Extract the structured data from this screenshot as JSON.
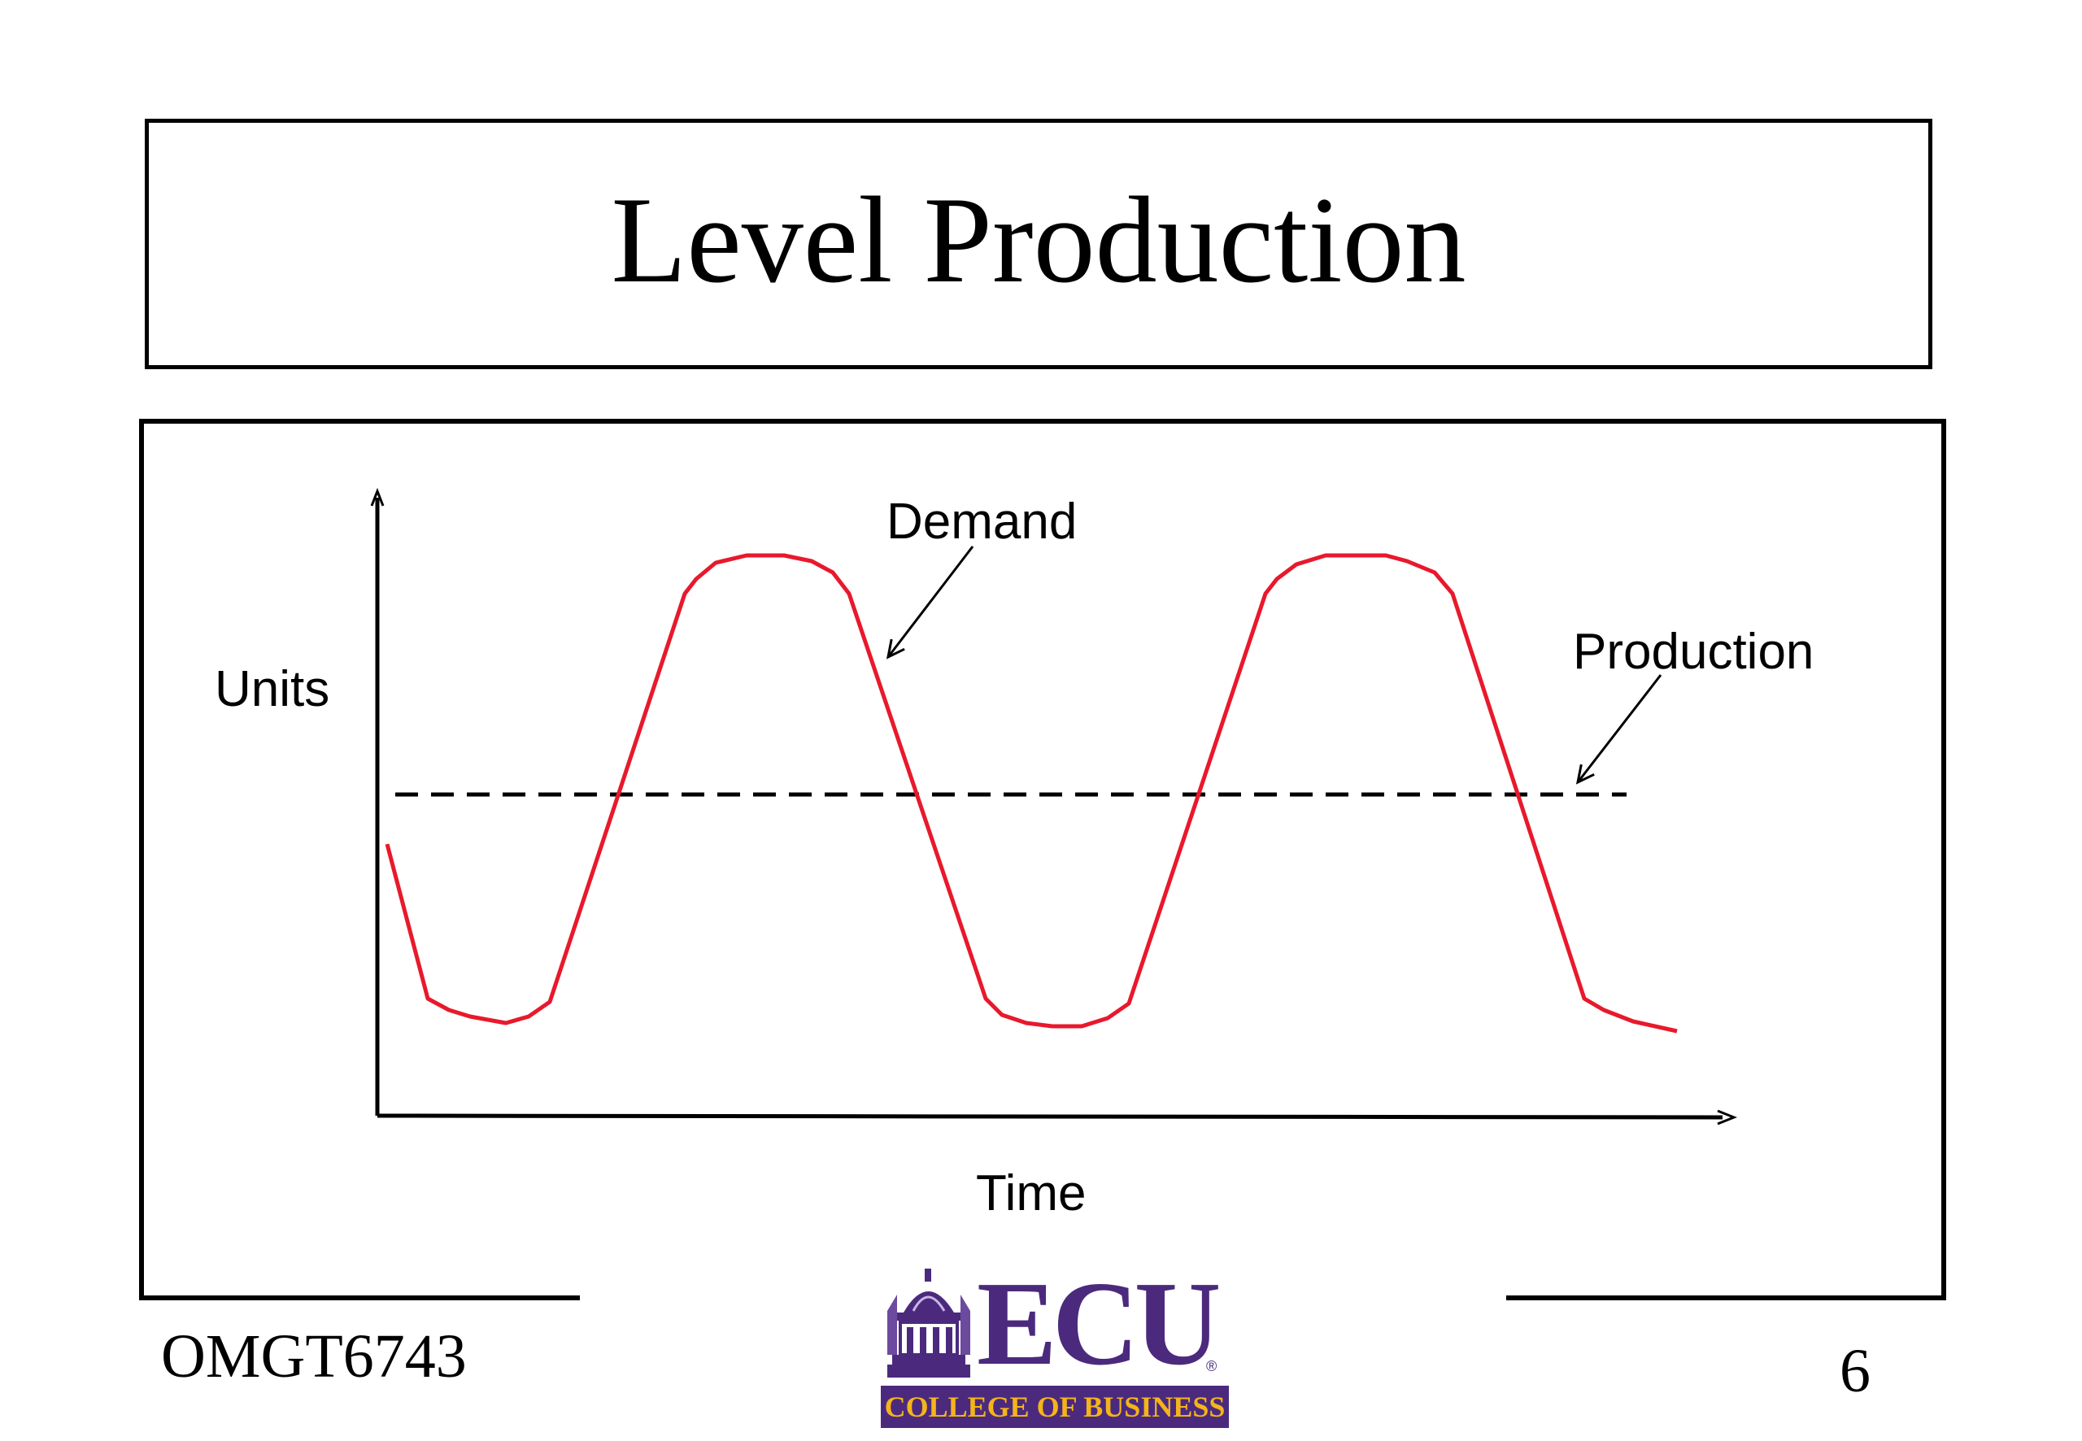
{
  "slide": {
    "title": "Level Production",
    "course": "OMGT6743",
    "page_number": "6"
  },
  "diagram": {
    "y_axis_label": "Units",
    "x_axis_label": "Time",
    "demand_label": "Demand",
    "production_label": "Production",
    "colors": {
      "demand_line": "#e8192c",
      "production_line": "#000000",
      "axes": "#000000"
    },
    "production_style": "dashed"
  },
  "logo": {
    "wordmark": "ECU",
    "registered": "®",
    "banner": "COLLEGE OF BUSINESS",
    "icon": "cupola-icon",
    "colors": {
      "purple": "#4b2a7e",
      "gold": "#f4b41a"
    }
  }
}
